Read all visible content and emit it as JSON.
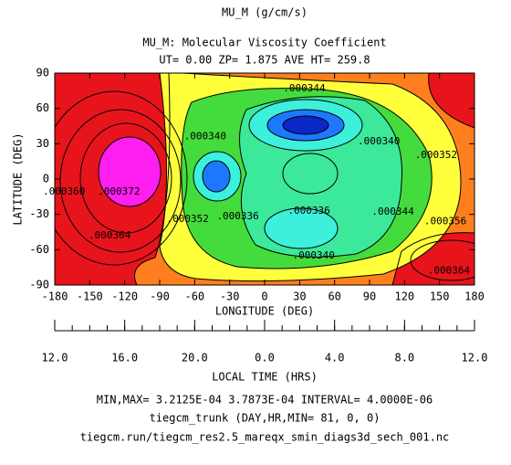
{
  "chart_data": {
    "type": "contour",
    "title": "MU_M (g/cm/s)",
    "subtitle": "MU_M: Molecular Viscosity Coefficient",
    "subtitle2": "UT= 0.00 ZP=  1.875 AVE HT= 259.8",
    "xlabel": "LONGITUDE (DEG)",
    "ylabel": "LATITUDE (DEG)",
    "xlim": [
      -180,
      180
    ],
    "ylim": [
      -90,
      90
    ],
    "xticks": [
      -180,
      -150,
      -120,
      -90,
      -60,
      -30,
      0,
      30,
      60,
      90,
      120,
      150,
      180
    ],
    "yticks": [
      -90,
      -60,
      -30,
      0,
      30,
      60,
      90
    ],
    "lt_label": "LOCAL TIME (HRS)",
    "lt_ticks": [
      {
        "value": 12,
        "label": "12.0"
      },
      {
        "value": 16,
        "label": "16.0"
      },
      {
        "value": 20,
        "label": "20.0"
      },
      {
        "value": 0,
        "label": "0.0"
      },
      {
        "value": 4,
        "label": "4.0"
      },
      {
        "value": 8,
        "label": "8.0"
      },
      {
        "value": 12,
        "label": "12.0"
      }
    ],
    "contour_labels": [
      {
        "value": 0.000344,
        "label": ".000344",
        "lon": 34,
        "lat": 77
      },
      {
        "value": 0.00034,
        "label": ".000340",
        "lon": -51,
        "lat": 36
      },
      {
        "value": 0.00034,
        "label": ".000340",
        "lon": 98,
        "lat": 32
      },
      {
        "value": 0.000352,
        "label": ".000352",
        "lon": 147,
        "lat": 20
      },
      {
        "value": 0.000336,
        "label": ".000336",
        "lon": -23,
        "lat": -32
      },
      {
        "value": 0.000336,
        "label": ".000336",
        "lon": 38,
        "lat": -27
      },
      {
        "value": 0.000344,
        "label": ".000344",
        "lon": 110,
        "lat": -28
      },
      {
        "value": 0.00034,
        "label": ".000340",
        "lon": 42,
        "lat": -65
      },
      {
        "value": 0.000356,
        "label": ".000356",
        "lon": 155,
        "lat": -36
      },
      {
        "value": 0.000364,
        "label": ".000364",
        "lon": 158,
        "lat": -78
      },
      {
        "value": 0.000364,
        "label": ".000364",
        "lon": -133,
        "lat": -48
      },
      {
        "value": 0.000372,
        "label": ".000372",
        "lon": -125,
        "lat": -11
      },
      {
        "value": 0.00036,
        "label": ".000360",
        "lon": -172,
        "lat": -11
      },
      {
        "value": 0.000352,
        "label": ".000352",
        "lon": -66,
        "lat": -34
      }
    ],
    "footer": [
      "MIN,MAX=  3.2125E-04  3.7873E-04 INTERVAL=  4.0000E-06",
      "tiegcm_trunk (DAY,HR,MIN= 81, 0, 0)",
      "tiegcm.run/tiegcm_res2.5_mareqx_smin_diags3d_sech_001.nc"
    ]
  }
}
